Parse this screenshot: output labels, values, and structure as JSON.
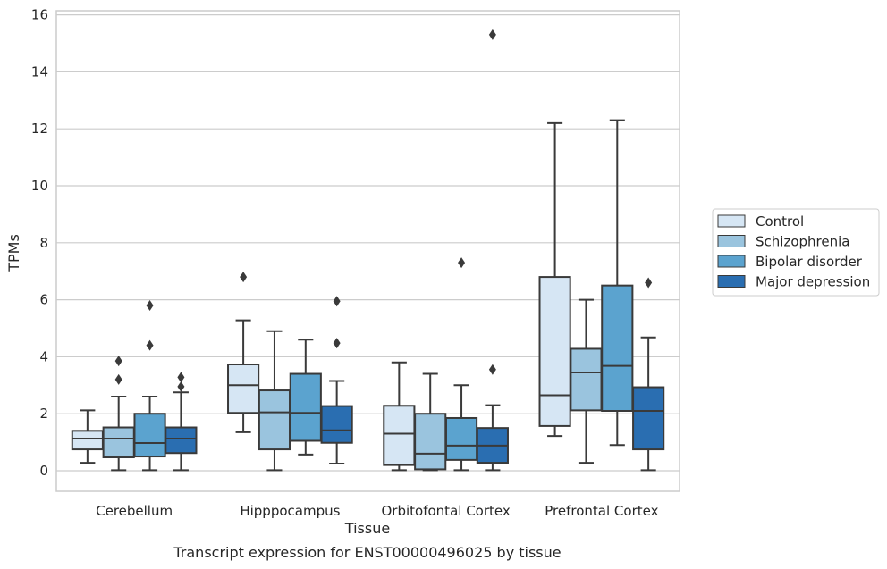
{
  "chart_data": {
    "type": "box",
    "caption": "Transcript expression for ENST00000496025 by tissue",
    "xlabel": "Tissue",
    "ylabel": "TPMs",
    "ylim": [
      -0.75,
      16.1
    ],
    "yticks": [
      0,
      2,
      4,
      6,
      8,
      10,
      12,
      14,
      16
    ],
    "grid": "horizontal",
    "legend_position": "right-center",
    "categories": [
      "Cerebellum",
      "Hipppocampus",
      "Orbitofontal Cortex",
      "Prefrontal Cortex"
    ],
    "series": [
      {
        "name": "Control",
        "color": "#d6e6f4",
        "boxes": [
          {
            "whislo": 0.28,
            "q1": 0.75,
            "median": 1.13,
            "q3": 1.4,
            "whishi": 2.12,
            "fliers": []
          },
          {
            "whislo": 1.35,
            "q1": 2.03,
            "median": 3.0,
            "q3": 3.73,
            "whishi": 5.28,
            "fliers": [
              6.8
            ]
          },
          {
            "whislo": 0.02,
            "q1": 0.2,
            "median": 1.3,
            "q3": 2.28,
            "whishi": 3.8,
            "fliers": []
          },
          {
            "whislo": 1.22,
            "q1": 1.57,
            "median": 2.65,
            "q3": 6.8,
            "whishi": 12.2,
            "fliers": []
          }
        ]
      },
      {
        "name": "Schizophrenia",
        "color": "#9ac4de",
        "boxes": [
          {
            "whislo": 0.02,
            "q1": 0.47,
            "median": 1.13,
            "q3": 1.52,
            "whishi": 2.6,
            "fliers": [
              3.2,
              3.85
            ]
          },
          {
            "whislo": 0.02,
            "q1": 0.75,
            "median": 2.05,
            "q3": 2.82,
            "whishi": 4.9,
            "fliers": []
          },
          {
            "whislo": 0.02,
            "q1": 0.05,
            "median": 0.6,
            "q3": 2.0,
            "whishi": 3.4,
            "fliers": []
          },
          {
            "whislo": 0.28,
            "q1": 2.12,
            "median": 3.45,
            "q3": 4.28,
            "whishi": 6.0,
            "fliers": []
          }
        ]
      },
      {
        "name": "Bipolar disorder",
        "color": "#5ba3cf",
        "boxes": [
          {
            "whislo": 0.02,
            "q1": 0.5,
            "median": 0.97,
            "q3": 2.0,
            "whishi": 2.6,
            "fliers": [
              4.4,
              5.8
            ]
          },
          {
            "whislo": 0.57,
            "q1": 1.05,
            "median": 2.03,
            "q3": 3.4,
            "whishi": 4.6,
            "fliers": []
          },
          {
            "whislo": 0.02,
            "q1": 0.38,
            "median": 0.88,
            "q3": 1.85,
            "whishi": 3.0,
            "fliers": [
              7.3
            ]
          },
          {
            "whislo": 0.9,
            "q1": 2.1,
            "median": 3.68,
            "q3": 6.5,
            "whishi": 12.3,
            "fliers": []
          }
        ]
      },
      {
        "name": "Major depression",
        "color": "#2a6eb1",
        "boxes": [
          {
            "whislo": 0.02,
            "q1": 0.62,
            "median": 1.13,
            "q3": 1.52,
            "whishi": 2.75,
            "fliers": [
              2.95,
              3.28
            ]
          },
          {
            "whislo": 0.25,
            "q1": 0.98,
            "median": 1.42,
            "q3": 2.27,
            "whishi": 3.15,
            "fliers": [
              4.48,
              5.95
            ]
          },
          {
            "whislo": 0.02,
            "q1": 0.28,
            "median": 0.88,
            "q3": 1.5,
            "whishi": 2.3,
            "fliers": [
              3.55,
              15.3
            ]
          },
          {
            "whislo": 0.02,
            "q1": 0.75,
            "median": 2.1,
            "q3": 2.93,
            "whishi": 4.68,
            "fliers": [
              6.6
            ]
          }
        ]
      }
    ]
  }
}
